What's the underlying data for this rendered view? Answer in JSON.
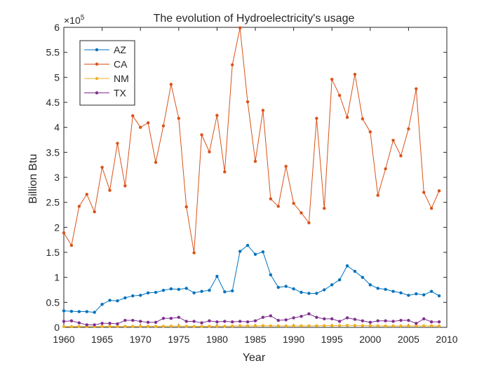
{
  "chart_data": {
    "type": "line",
    "title": "The evolution of Hydroelectricity's usage",
    "xlabel": "Year",
    "ylabel": "Billion Btu",
    "xlim": [
      1960,
      2010
    ],
    "ylim": [
      0,
      600000
    ],
    "x_ticks": [
      1960,
      1965,
      1970,
      1975,
      1980,
      1985,
      1990,
      1995,
      2000,
      2005,
      2010
    ],
    "x_tick_labels": [
      "1960",
      "1965",
      "1970",
      "1975",
      "1980",
      "1985",
      "1990",
      "1995",
      "2000",
      "2005",
      "2010"
    ],
    "y_ticks": [
      0,
      50000,
      100000,
      150000,
      200000,
      250000,
      300000,
      350000,
      400000,
      450000,
      500000,
      550000,
      600000
    ],
    "y_tick_labels": [
      "0",
      "0.5",
      "1",
      "1.5",
      "2",
      "2.5",
      "3",
      "3.5",
      "4",
      "4.5",
      "5",
      "5.5",
      "6"
    ],
    "y_exponent_label": "×10",
    "y_exponent_power": "5",
    "grid": false,
    "legend_position": "top-left",
    "x": [
      1960,
      1961,
      1962,
      1963,
      1964,
      1965,
      1966,
      1967,
      1968,
      1969,
      1970,
      1971,
      1972,
      1973,
      1974,
      1975,
      1976,
      1977,
      1978,
      1979,
      1980,
      1981,
      1982,
      1983,
      1984,
      1985,
      1986,
      1987,
      1988,
      1989,
      1990,
      1991,
      1992,
      1993,
      1994,
      1995,
      1996,
      1997,
      1998,
      1999,
      2000,
      2001,
      2002,
      2003,
      2004,
      2005,
      2006,
      2007,
      2008,
      2009
    ],
    "series": [
      {
        "name": "AZ",
        "color": "#0072BD",
        "values": [
          33000,
          32000,
          31500,
          31500,
          30000,
          46000,
          54000,
          53000,
          59000,
          63000,
          64000,
          69000,
          70000,
          74000,
          77000,
          76000,
          78000,
          69000,
          72000,
          74000,
          102000,
          71000,
          73000,
          152000,
          164000,
          146000,
          151000,
          105000,
          80000,
          82000,
          77000,
          70000,
          68000,
          68000,
          75000,
          85000,
          95000,
          123000,
          112000,
          100000,
          85000,
          78000,
          76000,
          72000,
          69000,
          64000,
          67000,
          65000,
          72000,
          63000
        ]
      },
      {
        "name": "CA",
        "color": "#D95319",
        "values": [
          189000,
          164000,
          242000,
          266000,
          231000,
          320000,
          274000,
          368000,
          283000,
          423000,
          400000,
          409000,
          330000,
          403000,
          486000,
          418000,
          241000,
          149000,
          385000,
          351000,
          424000,
          311000,
          525000,
          599000,
          451000,
          332000,
          434000,
          257000,
          242000,
          322000,
          248000,
          229000,
          209000,
          418000,
          238000,
          496000,
          464000,
          420000,
          506000,
          417000,
          391000,
          264000,
          317000,
          374000,
          343000,
          397000,
          477000,
          270000,
          238000,
          273000
        ]
      },
      {
        "name": "NM",
        "color": "#EDB120",
        "values": [
          1500,
          1500,
          1800,
          1500,
          1500,
          1800,
          2000,
          1800,
          2000,
          2000,
          2000,
          2200,
          2000,
          2200,
          2500,
          2500,
          2200,
          1800,
          2000,
          2200,
          2500,
          2200,
          2500,
          3000,
          3000,
          3000,
          3500,
          3000,
          3000,
          2800,
          3000,
          3000,
          3000,
          3200,
          3500,
          3500,
          3500,
          3800,
          3800,
          3500,
          3300,
          3000,
          2800,
          2800,
          2800,
          3000,
          3000,
          3000,
          3000,
          2800
        ]
      },
      {
        "name": "TX",
        "color": "#7E2F8E",
        "values": [
          12000,
          13000,
          9000,
          5000,
          5000,
          8000,
          8000,
          7000,
          14000,
          14000,
          12000,
          10000,
          10000,
          18000,
          18000,
          20000,
          12000,
          12000,
          9000,
          13000,
          11000,
          12000,
          11000,
          12000,
          11000,
          13000,
          20000,
          23000,
          14000,
          15000,
          19000,
          22000,
          27000,
          20000,
          17000,
          17000,
          12000,
          19000,
          16000,
          13000,
          10000,
          13000,
          13000,
          12000,
          14000,
          14000,
          8000,
          17000,
          11000,
          11000
        ]
      }
    ]
  }
}
